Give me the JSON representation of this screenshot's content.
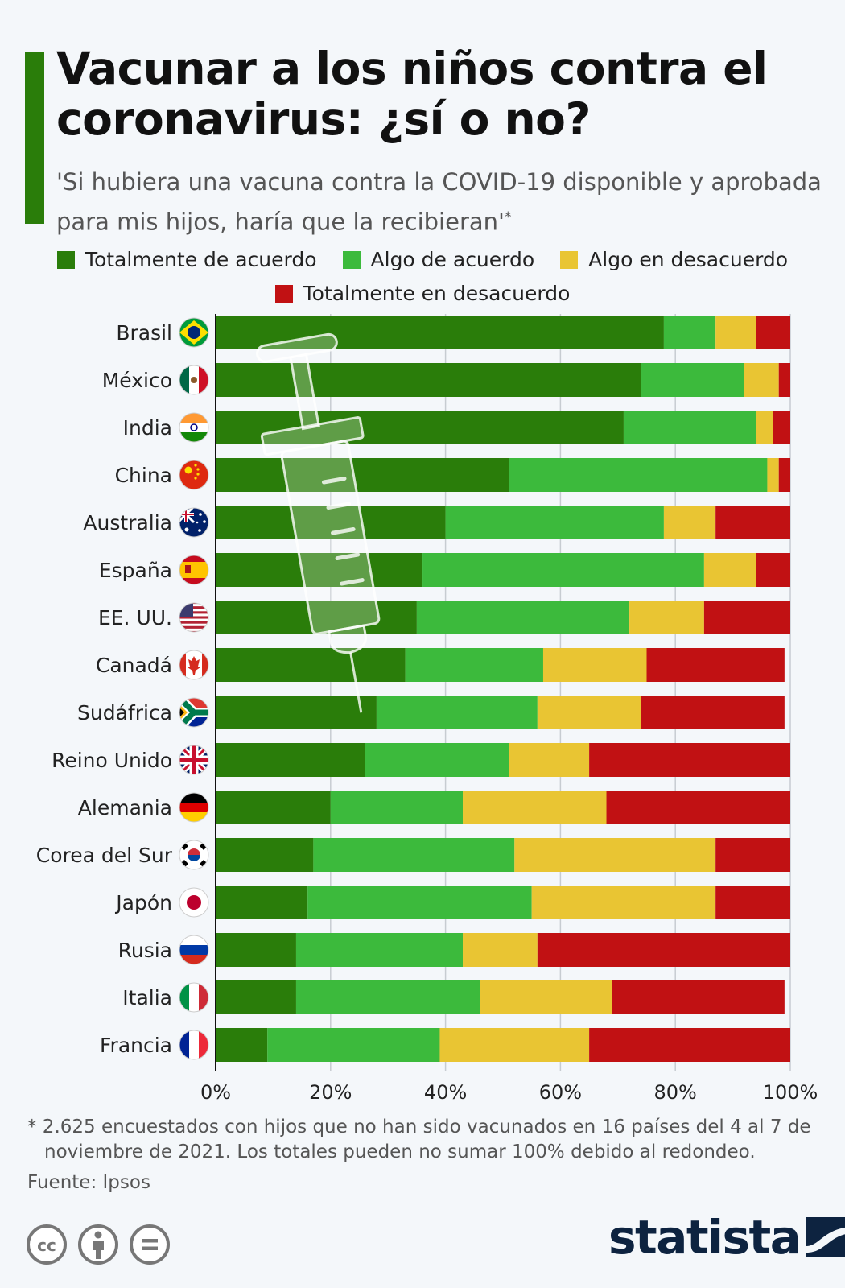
{
  "header": {
    "title": "Vacunar a los niños contra el coronavirus: ¿sí o no?",
    "subtitle": "'Si hubiera una vacuna contra la COVID-19 disponible y aprobada para mis hijos, haría que la recibieran'",
    "subtitle_mark": "*"
  },
  "colors": {
    "accent": "#2a7d0a",
    "totalmente_de_acuerdo": "#2a7d0a",
    "algo_de_acuerdo": "#3cba3c",
    "algo_en_desacuerdo": "#e9c533",
    "totalmente_en_desacuerdo": "#c11113",
    "brand": "#0d2340"
  },
  "chart_data": {
    "type": "bar",
    "orientation": "horizontal",
    "stacked": true,
    "categories": [
      "Brasil",
      "México",
      "India",
      "China",
      "Australia",
      "España",
      "EE. UU.",
      "Canadá",
      "Sudáfrica",
      "Reino Unido",
      "Alemania",
      "Corea del Sur",
      "Japón",
      "Rusia",
      "Italia",
      "Francia"
    ],
    "series": [
      {
        "name": "Totalmente de acuerdo",
        "values": [
          78,
          74,
          71,
          51,
          40,
          36,
          35,
          33,
          28,
          26,
          20,
          17,
          16,
          14,
          14,
          9
        ]
      },
      {
        "name": "Algo de acuerdo",
        "values": [
          9,
          18,
          23,
          45,
          38,
          49,
          37,
          24,
          28,
          25,
          23,
          35,
          39,
          29,
          32,
          30
        ]
      },
      {
        "name": "Algo en desacuerdo",
        "values": [
          7,
          6,
          3,
          2,
          9,
          9,
          13,
          18,
          18,
          14,
          25,
          35,
          32,
          13,
          23,
          26
        ]
      },
      {
        "name": "Totalmente en desacuerdo",
        "values": [
          6,
          2,
          3,
          2,
          13,
          6,
          15,
          24,
          25,
          35,
          32,
          13,
          13,
          44,
          30,
          35
        ]
      }
    ],
    "xlim": [
      0,
      100
    ],
    "x_ticks": [
      "0%",
      "20%",
      "40%",
      "60%",
      "80%",
      "100%"
    ],
    "grid": true,
    "legend_position": "top",
    "flags": [
      "brazil-flag-icon",
      "mexico-flag-icon",
      "india-flag-icon",
      "china-flag-icon",
      "australia-flag-icon",
      "spain-flag-icon",
      "usa-flag-icon",
      "canada-flag-icon",
      "south-africa-flag-icon",
      "uk-flag-icon",
      "germany-flag-icon",
      "south-korea-flag-icon",
      "japan-flag-icon",
      "russia-flag-icon",
      "italy-flag-icon",
      "france-flag-icon"
    ]
  },
  "footer": {
    "note": "* 2.625 encuestados con hijos que no han sido vacunados en 16 países del 4 al 7 de noviembre de 2021. Los totales pueden no sumar 100% debido al redondeo.",
    "source": "Fuente: Ipsos",
    "brand": "statista",
    "license_icons": [
      "creative-commons-icon",
      "attribution-icon",
      "no-derivatives-icon"
    ]
  }
}
